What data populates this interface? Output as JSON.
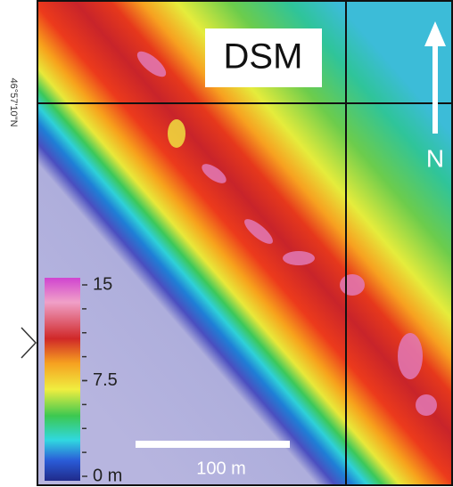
{
  "map": {
    "title": "DSM",
    "north_label": "N",
    "latitude_label": "46°57'10\"N",
    "legend": {
      "range": [
        0,
        15
      ],
      "ticks": [
        15,
        7.5,
        {
          "value": 0,
          "label": "0 m"
        }
      ]
    },
    "scale_bar": {
      "label": "100 m"
    }
  }
}
